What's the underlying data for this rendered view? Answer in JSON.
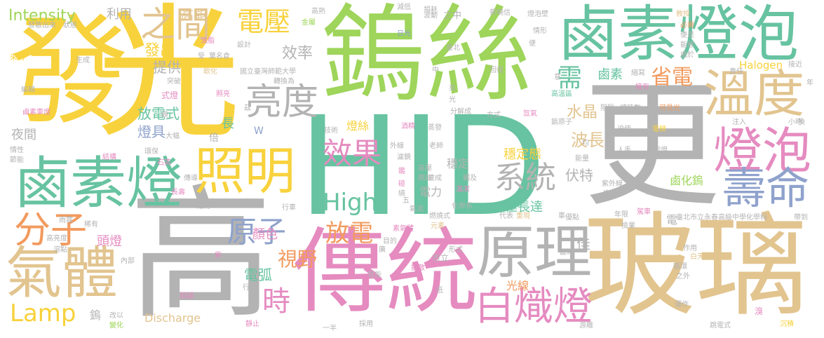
{
  "palette": {
    "yellow": "#f8d23c",
    "green": "#9ed55a",
    "teal": "#67c3a1",
    "grey": "#b3b3b3",
    "tan": "#e2c48f",
    "pink": "#e58bc0",
    "orange": "#f29a5e",
    "blue": "#8fa2cc"
  },
  "words": [
    {
      "text": "光",
      "color": "yellow"
    },
    {
      "text": "發",
      "color": "yellow"
    },
    {
      "text": "鎢絲",
      "color": "green"
    },
    {
      "text": "HID",
      "color": "teal"
    },
    {
      "text": "更",
      "color": "grey"
    },
    {
      "text": "高",
      "color": "grey"
    },
    {
      "text": "玻璃",
      "color": "tan"
    },
    {
      "text": "傳統",
      "color": "pink"
    },
    {
      "text": "鹵素燈泡",
      "color": "teal"
    },
    {
      "text": "鹵素燈",
      "color": "teal"
    },
    {
      "text": "原理",
      "color": "grey"
    },
    {
      "text": "照明",
      "color": "yellow"
    },
    {
      "text": "氣體",
      "color": "tan"
    },
    {
      "text": "溫度",
      "color": "tan"
    },
    {
      "text": "燈泡",
      "color": "pink"
    },
    {
      "text": "壽命",
      "color": "blue"
    },
    {
      "text": "白熾燈",
      "color": "pink"
    },
    {
      "text": "分子",
      "color": "orange"
    },
    {
      "text": "效果",
      "color": "pink"
    },
    {
      "text": "亮度",
      "color": "grey"
    },
    {
      "text": "原子",
      "color": "blue"
    },
    {
      "text": "系統",
      "color": "grey"
    },
    {
      "text": "電壓",
      "color": "yellow"
    },
    {
      "text": "之間",
      "color": "tan"
    },
    {
      "text": "High",
      "color": "teal"
    },
    {
      "text": "放電",
      "color": "orange"
    },
    {
      "text": "時",
      "color": "pink"
    },
    {
      "text": "省電",
      "color": "orange"
    },
    {
      "text": "Lamp",
      "color": "yellow"
    },
    {
      "text": "視野",
      "color": "orange"
    },
    {
      "text": "Intensity",
      "color": "green"
    },
    {
      "text": "需",
      "color": "teal"
    },
    {
      "text": "效率",
      "color": "grey"
    },
    {
      "text": "水晶",
      "color": "tan"
    },
    {
      "text": "波長",
      "color": "tan"
    },
    {
      "text": "極長達",
      "color": "teal"
    },
    {
      "text": "伏特",
      "color": "grey"
    },
    {
      "text": "發出",
      "color": "yellow"
    },
    {
      "text": "提供",
      "color": "grey"
    },
    {
      "text": "放電式",
      "color": "teal"
    },
    {
      "text": "燈具",
      "color": "blue"
    },
    {
      "text": "夜間",
      "color": "grey"
    },
    {
      "text": "電弧",
      "color": "teal"
    },
    {
      "text": "光線",
      "color": "orange"
    },
    {
      "text": "頭燈",
      "color": "pink"
    },
    {
      "text": "顏色",
      "color": "pink"
    },
    {
      "text": "Discharge",
      "color": "tan"
    },
    {
      "text": "鹵化鎢",
      "color": "green"
    },
    {
      "text": "穩定態",
      "color": "yellow"
    },
    {
      "text": "鹵素",
      "color": "teal"
    },
    {
      "text": "Halogen",
      "color": "yellow"
    },
    {
      "text": "高能",
      "color": "tan"
    },
    {
      "text": "利用",
      "color": "grey"
    },
    {
      "text": "電力",
      "color": "grey"
    },
    {
      "text": "燈絲",
      "color": "yellow"
    },
    {
      "text": "穩定",
      "color": "grey"
    },
    {
      "text": "佳",
      "color": "grey"
    },
    {
      "text": "長",
      "color": "teal"
    },
    {
      "text": "倍",
      "color": "grey"
    },
    {
      "text": "電",
      "color": "grey"
    },
    {
      "text": "W",
      "color": "blue"
    },
    {
      "text": "鎢",
      "color": "grey"
    },
    {
      "text": "之中",
      "color": "grey"
    },
    {
      "text": "日光",
      "color": "blue"
    },
    {
      "text": "設計",
      "color": "grey"
    },
    {
      "text": "金屬",
      "color": "green"
    },
    {
      "text": "油脂",
      "color": "pink"
    },
    {
      "text": "生成",
      "color": "grey"
    },
    {
      "text": "來得",
      "color": "yellow"
    },
    {
      "text": "編輯",
      "color": "grey"
    },
    {
      "text": "軟化",
      "color": "tan"
    },
    {
      "text": "突破",
      "color": "grey"
    },
    {
      "text": "國立臺灣師範大學",
      "color": "grey"
    },
    {
      "text": "轉換為",
      "color": "grey"
    },
    {
      "text": "式燈",
      "color": "pink"
    },
    {
      "text": "照亮",
      "color": "pink"
    },
    {
      "text": "技術",
      "color": "grey"
    },
    {
      "text": "酒精",
      "color": "pink"
    },
    {
      "text": "蒸發",
      "color": "grey"
    },
    {
      "text": "分解成",
      "color": "grey"
    },
    {
      "text": "方式",
      "color": "grey"
    },
    {
      "text": "氙氣",
      "color": "pink"
    },
    {
      "text": "阻隔",
      "color": "grey"
    },
    {
      "text": "總時數",
      "color": "grey"
    },
    {
      "text": "可見光",
      "color": "orange"
    },
    {
      "text": "迫使",
      "color": "grey"
    },
    {
      "text": "電極",
      "color": "yellow"
    },
    {
      "text": "人手",
      "color": "grey"
    },
    {
      "text": "電燈",
      "color": "grey"
    },
    {
      "text": "鎢原子",
      "color": "grey"
    },
    {
      "text": "能量",
      "color": "grey"
    },
    {
      "text": "高溫區",
      "color": "teal"
    },
    {
      "text": "擁有",
      "color": "pink"
    },
    {
      "text": "縮寫",
      "color": "grey"
    },
    {
      "text": "責任",
      "color": "grey"
    },
    {
      "text": "接近",
      "color": "grey"
    },
    {
      "text": "回復",
      "color": "grey"
    },
    {
      "text": "臺北",
      "color": "grey"
    },
    {
      "text": "波動",
      "color": "grey"
    },
    {
      "text": "損耗",
      "color": "grey"
    },
    {
      "text": "減低",
      "color": "grey"
    },
    {
      "text": "高熱",
      "color": "grey"
    },
    {
      "text": "蔡曉信",
      "color": "grey"
    },
    {
      "text": "燈泡壁",
      "color": "grey"
    },
    {
      "text": "教授",
      "color": "tan"
    },
    {
      "text": "必需",
      "color": "orange"
    },
    {
      "text": "便是",
      "color": "grey"
    },
    {
      "text": "能態",
      "color": "grey"
    },
    {
      "text": "處於",
      "color": "grey"
    },
    {
      "text": "情形",
      "color": "grey"
    },
    {
      "text": "便",
      "color": "grey"
    },
    {
      "text": "發散出來",
      "color": "grey"
    },
    {
      "text": "狀態",
      "color": "grey"
    },
    {
      "text": "受",
      "color": "grey"
    },
    {
      "text": "葉名倉",
      "color": "grey"
    },
    {
      "text": "鹵素車燈",
      "color": "pink"
    },
    {
      "text": "情性",
      "color": "grey"
    },
    {
      "text": "節能",
      "color": "grey"
    },
    {
      "text": "結構",
      "color": "pink"
    },
    {
      "text": "環保",
      "color": "grey"
    },
    {
      "text": "石英",
      "color": "pink"
    },
    {
      "text": "長壽",
      "color": "pink"
    },
    {
      "text": "傳導",
      "color": "grey"
    },
    {
      "text": "點附",
      "color": "grey"
    },
    {
      "text": "行車",
      "color": "grey"
    },
    {
      "text": "雨霧",
      "color": "grey"
    },
    {
      "text": "稀有",
      "color": "grey"
    },
    {
      "text": "高亮度",
      "color": "grey"
    },
    {
      "text": "溶點",
      "color": "grey"
    },
    {
      "text": "內部",
      "color": "grey"
    },
    {
      "text": "改以",
      "color": "grey"
    },
    {
      "text": "變化",
      "color": "green"
    },
    {
      "text": "超越",
      "color": "pink"
    },
    {
      "text": "行駛",
      "color": "grey"
    },
    {
      "text": "應",
      "color": "grey"
    },
    {
      "text": "靜止",
      "color": "pink"
    },
    {
      "text": "一半",
      "color": "grey"
    },
    {
      "text": "採用",
      "color": "grey"
    },
    {
      "text": "電能",
      "color": "grey"
    },
    {
      "text": "擴散",
      "color": "pink"
    },
    {
      "text": "形式",
      "color": "grey"
    },
    {
      "text": "目的",
      "color": "grey"
    },
    {
      "text": "市立",
      "color": "grey"
    },
    {
      "text": "素氣體",
      "color": "pink"
    },
    {
      "text": "元素",
      "color": "tan"
    },
    {
      "text": "燃燒式",
      "color": "grey"
    },
    {
      "text": "氣流",
      "color": "grey"
    },
    {
      "text": "化學系",
      "color": "grey"
    },
    {
      "text": "代表",
      "color": "grey"
    },
    {
      "text": "重現",
      "color": "tan"
    },
    {
      "text": "車",
      "color": "grey"
    },
    {
      "text": "優點",
      "color": "grey"
    },
    {
      "text": "年限",
      "color": "grey"
    },
    {
      "text": "駕車",
      "color": "pink"
    },
    {
      "text": "撿業",
      "color": "grey"
    },
    {
      "text": "臺北市立永春高級中學化學科",
      "color": "grey"
    },
    {
      "text": "帶到",
      "color": "grey"
    },
    {
      "text": "區域",
      "color": "grey"
    },
    {
      "text": "作用",
      "color": "grey"
    },
    {
      "text": "白天",
      "color": "tan"
    },
    {
      "text": "循環",
      "color": "grey"
    },
    {
      "text": "之外",
      "color": "grey"
    },
    {
      "text": "運作",
      "color": "grey"
    },
    {
      "text": "游離",
      "color": "grey"
    },
    {
      "text": "跳電式",
      "color": "grey"
    },
    {
      "text": "沉積",
      "color": "yellow"
    },
    {
      "text": "溴",
      "color": "pink"
    },
    {
      "text": "換",
      "color": "grey"
    },
    {
      "text": "小時",
      "color": "grey"
    },
    {
      "text": "注入",
      "color": "grey"
    },
    {
      "text": "指膜",
      "color": "grey"
    },
    {
      "text": "複雜",
      "color": "grey"
    },
    {
      "text": "紫外線",
      "color": "grey"
    },
    {
      "text": "均",
      "color": "grey"
    },
    {
      "text": "外線",
      "color": "grey"
    },
    {
      "text": "老師",
      "color": "grey"
    },
    {
      "text": "濾鏡",
      "color": "grey"
    },
    {
      "text": "高壓",
      "color": "grey"
    },
    {
      "text": "開啟",
      "color": "grey"
    },
    {
      "text": "達成",
      "color": "grey"
    },
    {
      "text": "觸及",
      "color": "grey"
    },
    {
      "text": "滿潔",
      "color": "pink"
    },
    {
      "text": "五",
      "color": "grey"
    },
    {
      "text": "鑑",
      "color": "pink"
    },
    {
      "text": "碰",
      "color": "pink"
    },
    {
      "text": "繞",
      "color": "grey"
    },
    {
      "text": "亮",
      "color": "grey"
    },
    {
      "text": "中",
      "color": "grey"
    },
    {
      "text": "大幅",
      "color": "grey"
    },
    {
      "text": "鏡",
      "color": "grey"
    },
    {
      "text": "茲",
      "color": "grey"
    },
    {
      "text": "紫",
      "color": "pink"
    },
    {
      "text": "廣",
      "color": "grey"
    },
    {
      "text": "低",
      "color": "grey"
    },
    {
      "text": "意",
      "color": "grey"
    },
    {
      "text": "年",
      "color": "grey"
    },
    {
      "text": "光",
      "color": "grey"
    }
  ]
}
